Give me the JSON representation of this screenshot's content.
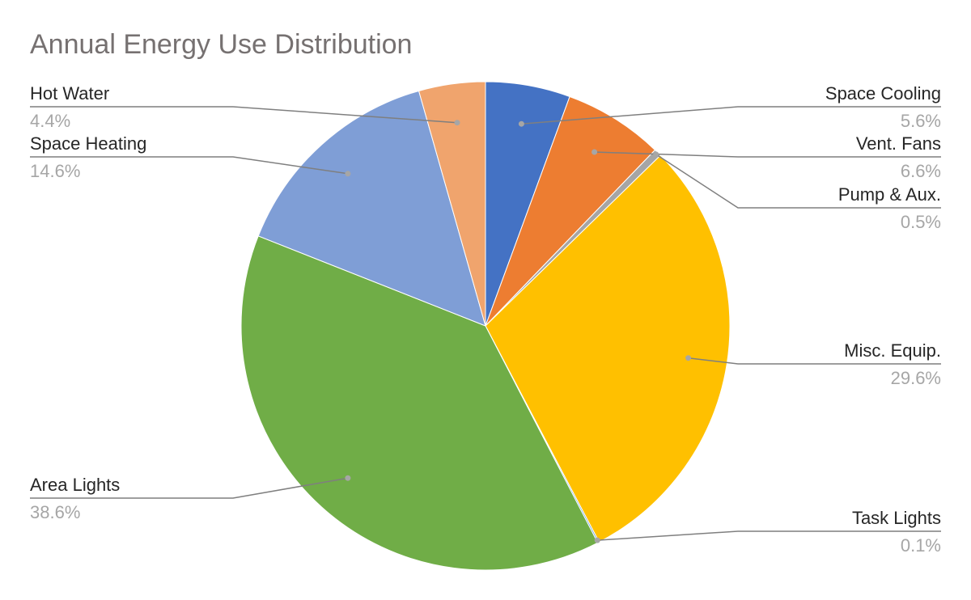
{
  "chart_data": {
    "type": "pie",
    "title": "Annual Energy Use Distribution",
    "slices": [
      {
        "label": "Space Cooling",
        "value": 5.6,
        "value_label": "5.6%",
        "color": "#4472C4",
        "label_side": "right"
      },
      {
        "label": "Vent. Fans",
        "value": 6.6,
        "value_label": "6.6%",
        "color": "#ED7D31",
        "label_side": "right"
      },
      {
        "label": "Pump & Aux.",
        "value": 0.5,
        "value_label": "0.5%",
        "color": "#A5A5A5",
        "label_side": "right"
      },
      {
        "label": "Misc. Equip.",
        "value": 29.6,
        "value_label": "29.6%",
        "color": "#FFC000",
        "label_side": "right"
      },
      {
        "label": "Task Lights",
        "value": 0.1,
        "value_label": "0.1%",
        "color": "#5B9BD5",
        "label_side": "right"
      },
      {
        "label": "Area Lights",
        "value": 38.6,
        "value_label": "38.6%",
        "color": "#70AD47",
        "label_side": "left"
      },
      {
        "label": "Space Heating",
        "value": 14.6,
        "value_label": "14.6%",
        "color": "#7F9ED6",
        "label_side": "left"
      },
      {
        "label": "Hot Water",
        "value": 4.4,
        "value_label": "4.4%",
        "color": "#F0A46D",
        "label_side": "left"
      }
    ],
    "start_angle_deg": 0,
    "direction": "clockwise",
    "leader_line_color": "#7f7f7f",
    "legend": "none"
  }
}
